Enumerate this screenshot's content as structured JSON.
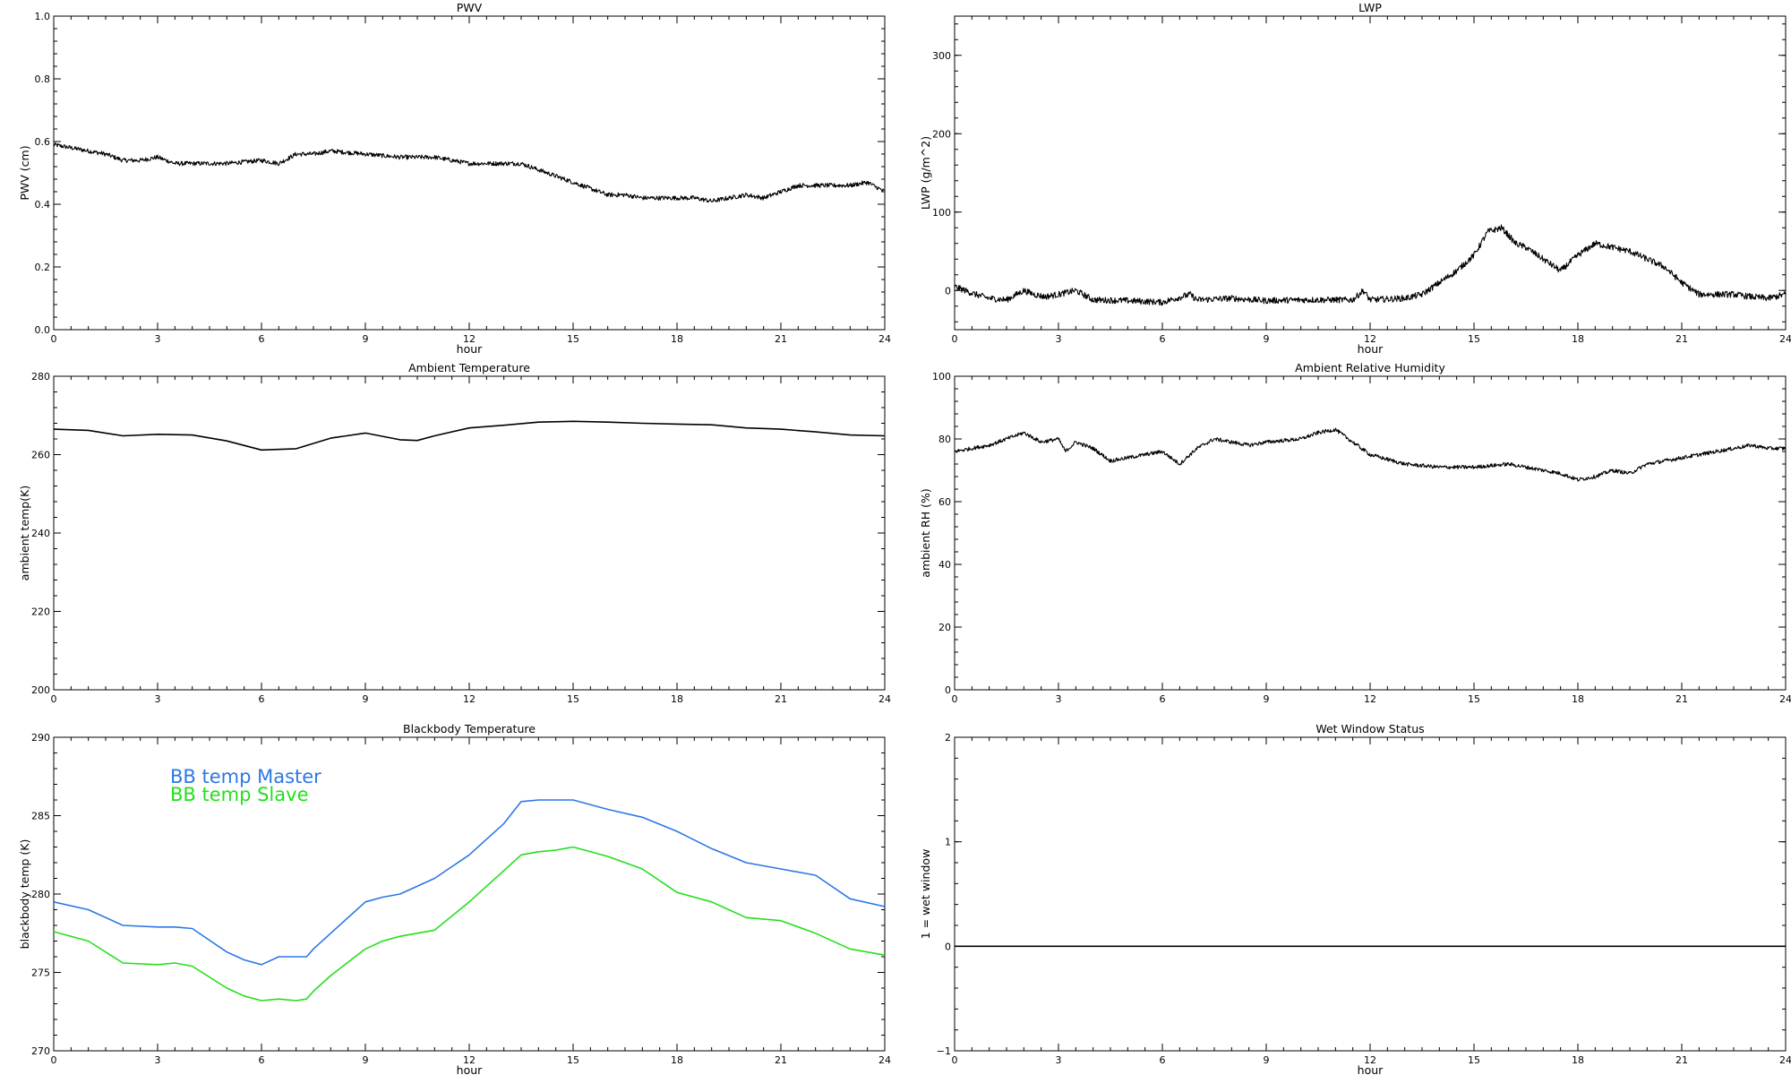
{
  "charts": [
    {
      "id": "pwv",
      "type": "line",
      "title": "PWV",
      "xlabel": "hour",
      "ylabel": "PWV (cm)",
      "xlim": [
        0,
        24
      ],
      "ylim": [
        0.0,
        1.0
      ],
      "xticks": [
        0,
        3,
        6,
        9,
        12,
        15,
        18,
        21,
        24
      ],
      "yticks": [
        0.0,
        0.2,
        0.4,
        0.6,
        0.8,
        1.0
      ],
      "ytick_labels": [
        "0.0",
        "0.2",
        "0.4",
        "0.6",
        "0.8",
        "1.0"
      ],
      "grid": false,
      "series": [
        {
          "color": "#000000",
          "noise": 0.007,
          "x": [
            0,
            0.5,
            1,
            1.5,
            2,
            2.5,
            3,
            3.5,
            4,
            5,
            6,
            6.5,
            7,
            7.5,
            8,
            9,
            10,
            11,
            12,
            13,
            13.5,
            14,
            14.5,
            15,
            15.5,
            16,
            16.5,
            17,
            17.5,
            18,
            18.5,
            19,
            19.5,
            20,
            20.5,
            21,
            21.5,
            22,
            22.5,
            23,
            23.5,
            24
          ],
          "y": [
            0.59,
            0.58,
            0.57,
            0.56,
            0.54,
            0.54,
            0.55,
            0.53,
            0.53,
            0.53,
            0.54,
            0.53,
            0.56,
            0.56,
            0.57,
            0.56,
            0.55,
            0.55,
            0.53,
            0.53,
            0.53,
            0.51,
            0.49,
            0.47,
            0.45,
            0.43,
            0.43,
            0.42,
            0.42,
            0.42,
            0.42,
            0.41,
            0.42,
            0.43,
            0.42,
            0.44,
            0.46,
            0.46,
            0.46,
            0.46,
            0.47,
            0.44
          ]
        }
      ]
    },
    {
      "id": "lwp",
      "type": "line",
      "title": "LWP",
      "xlabel": "hour",
      "ylabel": "LWP (g/m^2)",
      "xlim": [
        0,
        24
      ],
      "ylim": [
        -50,
        350
      ],
      "xticks": [
        0,
        3,
        6,
        9,
        12,
        15,
        18,
        21,
        24
      ],
      "yticks": [
        0,
        100,
        200,
        300
      ],
      "ytick_labels": [
        "0",
        "100",
        "200",
        "300"
      ],
      "grid": false,
      "series": [
        {
          "color": "#000000",
          "noise": 4,
          "x": [
            0,
            0.3,
            0.6,
            1,
            1.5,
            2,
            2.3,
            2.6,
            3,
            3.5,
            4,
            5,
            6,
            6.8,
            7,
            8,
            9,
            10,
            11,
            11.5,
            11.8,
            12,
            13,
            13.5,
            14,
            14.5,
            15,
            15.4,
            15.8,
            16.2,
            16.5,
            17,
            17.5,
            18,
            18.5,
            19,
            19.5,
            20,
            20.5,
            21,
            21.5,
            22,
            22.5,
            23,
            23.5,
            24
          ],
          "y": [
            5,
            0,
            -5,
            -10,
            -12,
            0,
            -5,
            -8,
            -5,
            0,
            -12,
            -13,
            -15,
            -5,
            -12,
            -10,
            -13,
            -12,
            -12,
            -12,
            0,
            -12,
            -10,
            -5,
            10,
            25,
            45,
            75,
            80,
            60,
            55,
            40,
            25,
            45,
            60,
            55,
            50,
            40,
            30,
            10,
            -5,
            -5,
            -5,
            -8,
            -10,
            -5
          ]
        }
      ]
    },
    {
      "id": "ambient-temperature",
      "type": "line",
      "title": "Ambient Temperature",
      "xlabel": "",
      "ylabel": "ambient temp(K)",
      "xlim": [
        0,
        24
      ],
      "ylim": [
        200,
        280
      ],
      "xticks": [
        0,
        3,
        6,
        9,
        12,
        15,
        18,
        21,
        24
      ],
      "yticks": [
        200,
        220,
        240,
        260,
        280
      ],
      "ytick_labels": [
        "200",
        "220",
        "240",
        "260",
        "280"
      ],
      "grid": false,
      "series": [
        {
          "color": "#000000",
          "noise": 0,
          "x": [
            0,
            1,
            2,
            3,
            4,
            5,
            6,
            7,
            8,
            9,
            10,
            10.5,
            11,
            12,
            13,
            14,
            15,
            16,
            17,
            18,
            19,
            20,
            21,
            22,
            23,
            24
          ],
          "y": [
            266.5,
            266.2,
            264.8,
            265.2,
            265,
            263.5,
            261.2,
            261.5,
            264.2,
            265.5,
            263.8,
            263.6,
            264.8,
            266.8,
            267.5,
            268.3,
            268.5,
            268.3,
            268.0,
            267.8,
            267.6,
            266.8,
            266.5,
            265.8,
            265,
            264.8
          ]
        }
      ]
    },
    {
      "id": "ambient-relative-humidity",
      "type": "line",
      "title": "Ambient Relative Humidity",
      "xlabel": "",
      "ylabel": "ambient RH (%)",
      "xlim": [
        0,
        24
      ],
      "ylim": [
        0,
        100
      ],
      "xticks": [
        0,
        3,
        6,
        9,
        12,
        15,
        18,
        21,
        24
      ],
      "yticks": [
        0,
        20,
        40,
        60,
        80,
        100
      ],
      "ytick_labels": [
        "0",
        "20",
        "40",
        "60",
        "80",
        "100"
      ],
      "grid": false,
      "series": [
        {
          "color": "#000000",
          "noise": 0.6,
          "x": [
            0,
            0.5,
            1,
            1.5,
            2,
            2.5,
            3,
            3.2,
            3.5,
            4,
            4.5,
            5,
            6,
            6.5,
            7,
            7.5,
            8,
            8.5,
            9,
            10,
            10.5,
            11,
            11.5,
            12,
            13,
            14,
            15,
            16,
            17,
            17.5,
            18,
            18.5,
            19,
            19.5,
            20,
            21,
            22,
            23,
            23.5,
            24
          ],
          "y": [
            76,
            77,
            78,
            80,
            82,
            79,
            80,
            76,
            79,
            77,
            73,
            74,
            76,
            72,
            77,
            80,
            79,
            78,
            79,
            80,
            82,
            83,
            79,
            75,
            72,
            71,
            71,
            72,
            70,
            69,
            67,
            68,
            70,
            69,
            72,
            74,
            76,
            78,
            77,
            77
          ]
        }
      ]
    },
    {
      "id": "blackbody-temperature",
      "type": "line",
      "title": "Blackbody Temperature",
      "xlabel": "hour",
      "ylabel": "blackbody temp (K)",
      "xlim": [
        0,
        24
      ],
      "ylim": [
        270,
        290
      ],
      "xticks": [
        0,
        3,
        6,
        9,
        12,
        15,
        18,
        21,
        24
      ],
      "yticks": [
        270,
        275,
        280,
        285,
        290
      ],
      "ytick_labels": [
        "270",
        "275",
        "280",
        "285",
        "290"
      ],
      "grid": false,
      "legend_position": "top-left",
      "series": [
        {
          "name": "BB temp Master",
          "color": "#2b78e4",
          "noise": 0,
          "x": [
            0,
            1,
            2,
            3,
            3.5,
            4,
            5,
            5.5,
            6,
            6.5,
            7,
            7.3,
            7.5,
            8,
            9,
            9.5,
            10,
            11,
            12,
            13,
            13.5,
            14,
            14.5,
            15,
            16,
            17,
            18,
            19,
            20,
            21,
            22,
            23,
            24
          ],
          "y": [
            279.5,
            279,
            278,
            277.9,
            277.9,
            277.8,
            276.3,
            275.8,
            275.5,
            276,
            276,
            276,
            276.5,
            277.5,
            279.5,
            279.8,
            280,
            281,
            282.5,
            284.5,
            285.9,
            286,
            286,
            286,
            285.4,
            284.9,
            284,
            282.9,
            282,
            281.6,
            281.2,
            279.7,
            279.2
          ]
        },
        {
          "name": "BB temp Slave",
          "color": "#22e01a",
          "noise": 0,
          "x": [
            0,
            1,
            2,
            3,
            3.5,
            4,
            5,
            5.5,
            6,
            6.5,
            7,
            7.3,
            7.5,
            8,
            9,
            9.5,
            10,
            11,
            12,
            13,
            13.5,
            14,
            14.5,
            15,
            16,
            17,
            18,
            19,
            20,
            21,
            22,
            23,
            24
          ],
          "y": [
            277.6,
            277,
            275.6,
            275.5,
            275.6,
            275.4,
            274,
            273.5,
            273.2,
            273.3,
            273.2,
            273.3,
            273.8,
            274.8,
            276.5,
            277,
            277.3,
            277.7,
            279.5,
            281.5,
            282.5,
            282.7,
            282.8,
            283,
            282.4,
            281.6,
            280.1,
            279.5,
            278.5,
            278.3,
            277.5,
            276.5,
            276.1
          ]
        }
      ]
    },
    {
      "id": "wet-window-status",
      "type": "line",
      "title": "Wet Window Status",
      "xlabel": "hour",
      "ylabel": "1 = wet window",
      "xlim": [
        0,
        24
      ],
      "ylim": [
        -1,
        2
      ],
      "xticks": [
        0,
        3,
        6,
        9,
        12,
        15,
        18,
        21,
        24
      ],
      "yticks": [
        -1,
        0,
        1,
        2
      ],
      "ytick_labels": [
        "−1",
        "0",
        "1",
        "2"
      ],
      "grid": false,
      "series": [
        {
          "color": "#000000",
          "noise": 0,
          "x": [
            0,
            24
          ],
          "y": [
            0,
            0
          ]
        }
      ]
    }
  ]
}
